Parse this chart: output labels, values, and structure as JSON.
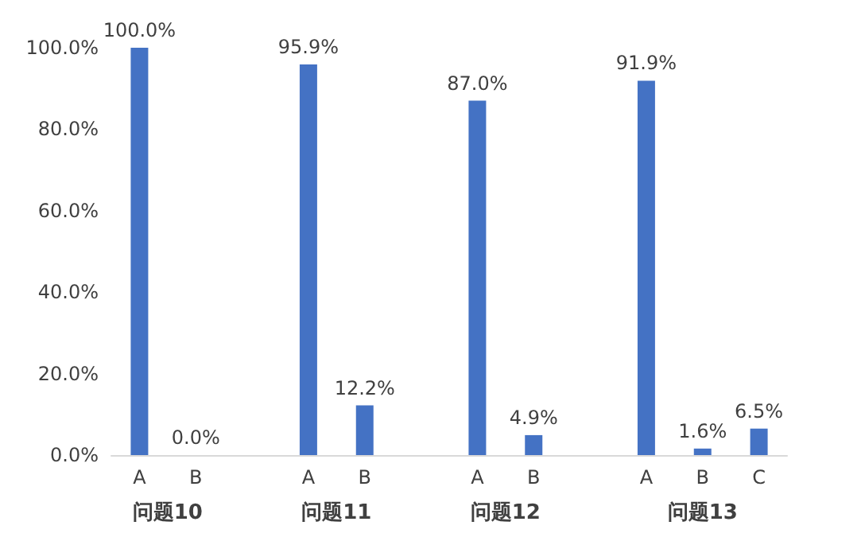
{
  "chart_data": {
    "type": "bar",
    "categories": [
      "A",
      "B",
      null,
      "A",
      "B",
      null,
      "A",
      "B",
      null,
      "A",
      "B",
      "C"
    ],
    "values": [
      100.0,
      0.0,
      null,
      95.9,
      12.2,
      null,
      87.0,
      4.9,
      null,
      91.9,
      1.6,
      6.5
    ],
    "value_labels": [
      "100.0%",
      "0.0%",
      null,
      "95.9%",
      "12.2%",
      null,
      "87.0%",
      "4.9%",
      null,
      "91.9%",
      "1.6%",
      "6.5%"
    ],
    "color": "#4472c4",
    "ylim": [
      0,
      100
    ],
    "yticks": [
      {
        "value": 0,
        "label": "0.0%"
      },
      {
        "value": 20,
        "label": "20.0%"
      },
      {
        "value": 40,
        "label": "40.0%"
      },
      {
        "value": 60,
        "label": "60.0%"
      },
      {
        "value": 80,
        "label": "80.0%"
      },
      {
        "value": 100,
        "label": "100.0%"
      }
    ],
    "annotations": [
      "问题10",
      "问题11",
      "问题12",
      "问题13"
    ],
    "grid": false
  }
}
